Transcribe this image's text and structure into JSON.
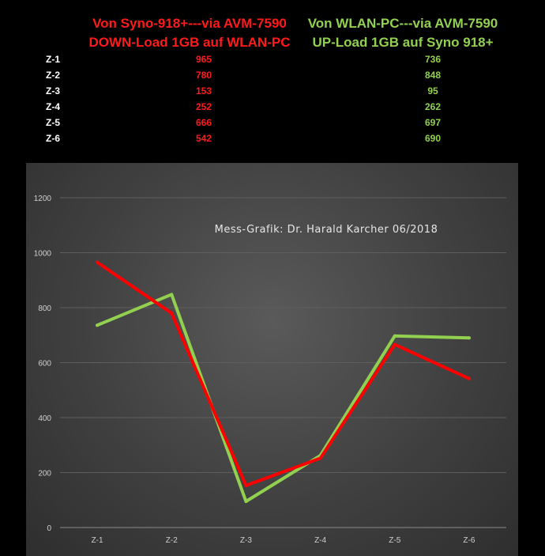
{
  "header": {
    "left_line1": "Von Syno-918+---via AVM-7590",
    "left_line2": "DOWN-Load 1GB auf WLAN-PC",
    "right_line1": "Von WLAN-PC---via AVM-7590",
    "right_line2": "UP-Load 1GB auf Syno 918+"
  },
  "table": {
    "rows": [
      {
        "label": "Z-1",
        "down": "965",
        "up": "736"
      },
      {
        "label": "Z-2",
        "down": "780",
        "up": "848"
      },
      {
        "label": "Z-3",
        "down": "153",
        "up": "95"
      },
      {
        "label": "Z-4",
        "down": "252",
        "up": "262"
      },
      {
        "label": "Z-5",
        "down": "666",
        "up": "697"
      },
      {
        "label": "Z-6",
        "down": "542",
        "up": "690"
      }
    ]
  },
  "chart_data": {
    "type": "line",
    "annotation": "Mess-Grafik: Dr. Harald Karcher 06/2018",
    "categories": [
      "Z-1",
      "Z-2",
      "Z-3",
      "Z-4",
      "Z-5",
      "Z-6"
    ],
    "ylim": [
      0,
      1200
    ],
    "yticks": [
      0,
      200,
      400,
      600,
      800,
      1000,
      1200
    ],
    "grid": true,
    "series": [
      {
        "values": [
          736,
          848,
          95,
          262,
          697,
          690
        ],
        "color": "#92d050"
      },
      {
        "values": [
          965,
          780,
          153,
          252,
          666,
          542
        ],
        "color": "#ff0000"
      }
    ]
  },
  "colors": {
    "down": "#ff1a1a",
    "up": "#92d050",
    "background": "#000000"
  }
}
